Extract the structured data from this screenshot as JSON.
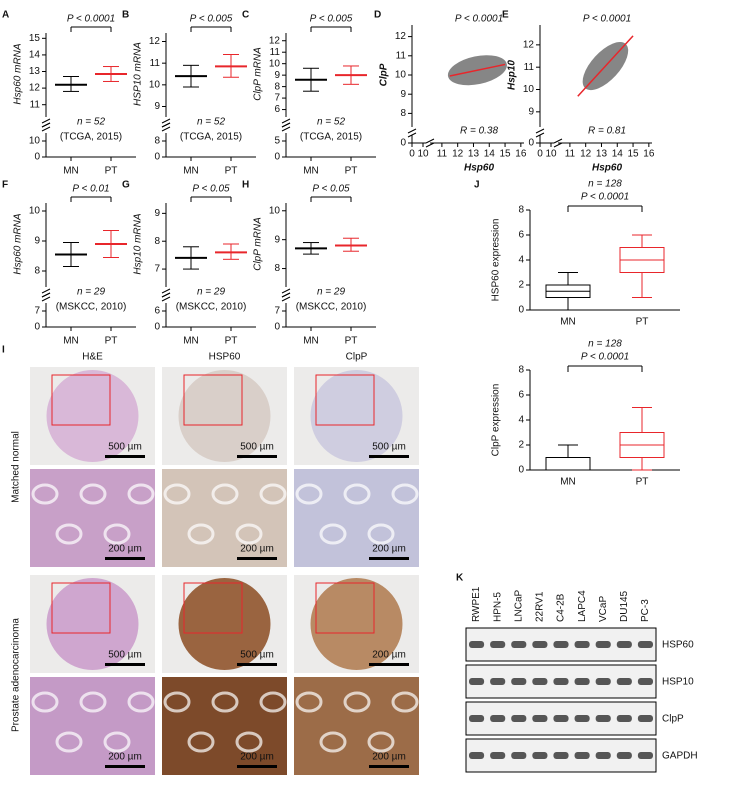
{
  "dotplots": [
    {
      "letter": "A",
      "ylabel": "Hsp60 mRNA",
      "p": "P < 0.0001",
      "n": "n = 52",
      "source": "(TCGA, 2015)",
      "categories": [
        "MN",
        "PT"
      ],
      "colors": [
        "#000000",
        "#e8262b"
      ],
      "mean": [
        12.2,
        12.85
      ],
      "sd_low": [
        11.8,
        12.4
      ],
      "sd_high": [
        12.7,
        13.3
      ],
      "ylim": [
        10.5,
        15.2
      ],
      "yticks": [
        11,
        12,
        13,
        14,
        15
      ],
      "lower_ticks": [
        0,
        10
      ]
    },
    {
      "letter": "B",
      "ylabel": "HSP10 mRNA",
      "p": "P < 0.005",
      "n": "n = 52",
      "source": "(TCGA, 2015)",
      "categories": [
        "MN",
        "PT"
      ],
      "colors": [
        "#000000",
        "#e8262b"
      ],
      "mean": [
        10.4,
        10.85
      ],
      "sd_low": [
        9.9,
        10.35
      ],
      "sd_high": [
        10.9,
        11.4
      ],
      "ylim": [
        8.7,
        12.3
      ],
      "yticks": [
        9,
        10,
        11,
        12
      ],
      "lower_ticks": [
        0,
        8
      ]
    },
    {
      "letter": "C",
      "ylabel": "ClpP mRNA",
      "p": "P < 0.005",
      "n": "n = 52",
      "source": "(TCGA, 2015)",
      "categories": [
        "MN",
        "PT"
      ],
      "colors": [
        "#000000",
        "#e8262b"
      ],
      "mean": [
        8.6,
        9.0
      ],
      "sd_low": [
        7.6,
        8.2
      ],
      "sd_high": [
        9.6,
        9.8
      ],
      "ylim": [
        5.7,
        12.5
      ],
      "yticks": [
        6,
        7,
        8,
        9,
        10,
        11,
        12
      ],
      "lower_ticks": [
        0,
        5
      ]
    },
    {
      "letter": "F",
      "ylabel": "Hsp60 mRNA",
      "p": "P < 0.01",
      "n": "n = 29",
      "source": "(MSKCC, 2010)",
      "categories": [
        "MN",
        "PT"
      ],
      "colors": [
        "#000000",
        "#e8262b"
      ],
      "mean": [
        8.55,
        8.9
      ],
      "sd_low": [
        8.15,
        8.45
      ],
      "sd_high": [
        8.95,
        9.35
      ],
      "ylim": [
        7.6,
        10.2
      ],
      "yticks": [
        8,
        9,
        10
      ],
      "lower_ticks": [
        0,
        7
      ]
    },
    {
      "letter": "G",
      "ylabel": "Hsp10 mRNA",
      "p": "P < 0.05",
      "n": "n = 29",
      "source": "(MSKCC, 2010)",
      "categories": [
        "MN",
        "PT"
      ],
      "colors": [
        "#000000",
        "#e8262b"
      ],
      "mean": [
        7.4,
        7.6
      ],
      "sd_low": [
        7.0,
        7.35
      ],
      "sd_high": [
        7.8,
        7.9
      ],
      "ylim": [
        6.5,
        9.3
      ],
      "yticks": [
        7,
        8,
        9
      ],
      "lower_ticks": [
        0,
        6
      ]
    },
    {
      "letter": "H",
      "ylabel": "ClpP mRNA",
      "p": "P < 0.05",
      "n": "n = 29",
      "source": "(MSKCC, 2010)",
      "categories": [
        "MN",
        "PT"
      ],
      "colors": [
        "#000000",
        "#e8262b"
      ],
      "mean": [
        8.7,
        8.8
      ],
      "sd_low": [
        8.5,
        8.6
      ],
      "sd_high": [
        8.9,
        9.05
      ],
      "ylim": [
        7.5,
        10.2
      ],
      "yticks": [
        8,
        9,
        10
      ],
      "lower_ticks": [
        0,
        7
      ]
    }
  ],
  "scatters": [
    {
      "letter": "D",
      "xlabel": "Hsp60",
      "ylabel": "ClpP",
      "p": "P < 0.0001",
      "r": "R = 0.38",
      "xlim": [
        10.5,
        16.2
      ],
      "xticks": [
        11,
        12,
        13,
        14,
        15,
        16
      ],
      "x_lower_ticks": [
        0,
        10
      ],
      "ylim": [
        7.5,
        12.5
      ],
      "yticks": [
        8,
        9,
        10,
        11,
        12
      ],
      "y_lower_ticks": [
        0
      ],
      "fit_x": [
        11.5,
        15
      ],
      "fit_y": [
        9.95,
        10.55
      ],
      "fit_color": "#e8262b"
    },
    {
      "letter": "E",
      "xlabel": "Hsp60",
      "ylabel": "Hsp10",
      "p": "P < 0.0001",
      "r": "R = 0.81",
      "xlim": [
        10.5,
        16.2
      ],
      "xticks": [
        11,
        12,
        13,
        14,
        15,
        16
      ],
      "x_lower_ticks": [
        0,
        10
      ],
      "ylim": [
        8.5,
        12.8
      ],
      "yticks": [
        9,
        10,
        11,
        12
      ],
      "y_lower_ticks": [
        0
      ],
      "fit_x": [
        11.5,
        15
      ],
      "fit_y": [
        9.7,
        12.4
      ],
      "fit_color": "#e8262b"
    }
  ],
  "boxplots": {
    "letter": "J",
    "panels": [
      {
        "ylabel": "HSP60 expression",
        "n": "n = 128",
        "p": "P < 0.0001",
        "categories": [
          "MN",
          "PT"
        ],
        "colors": [
          "#000000",
          "#e8262b"
        ],
        "min": [
          0,
          1
        ],
        "q1": [
          1,
          3
        ],
        "median": [
          1.5,
          4
        ],
        "q3": [
          2,
          5
        ],
        "max": [
          3,
          6
        ],
        "ylim": [
          0,
          8
        ],
        "yticks": [
          0,
          2,
          4,
          6,
          8
        ]
      },
      {
        "ylabel": "ClpP expression",
        "n": "n = 128",
        "p": "P < 0.0001",
        "categories": [
          "MN",
          "PT"
        ],
        "colors": [
          "#000000",
          "#e8262b"
        ],
        "min": [
          0,
          0
        ],
        "q1": [
          0,
          1
        ],
        "median": [
          0,
          2
        ],
        "q3": [
          1,
          3
        ],
        "max": [
          2,
          5
        ],
        "ylim": [
          0,
          8
        ],
        "yticks": [
          0,
          2,
          4,
          6,
          8
        ]
      }
    ]
  },
  "images": {
    "letter": "I",
    "columns": [
      "H&E",
      "HSP60",
      "ClpP"
    ],
    "rows": [
      "Matched normal",
      "Prostate adenocarcinoma"
    ],
    "scales": [
      [
        "500 µm",
        "500 µm",
        "500 µm"
      ],
      [
        "200 µm",
        "200 µm",
        "200 µm"
      ],
      [
        "500 µm",
        "500 µm",
        "200 µm"
      ],
      [
        "200 µm",
        "200 µm",
        "200 µm"
      ]
    ]
  },
  "blot": {
    "letter": "K",
    "lanes": [
      "RWPE1",
      "HPN-5",
      "LNCaP",
      "22RV1",
      "C4-2B",
      "LAPC4",
      "VCaP",
      "DU145",
      "PC-3"
    ],
    "proteins": [
      "HSP60",
      "HSP10",
      "ClpP",
      "GAPDH"
    ]
  }
}
